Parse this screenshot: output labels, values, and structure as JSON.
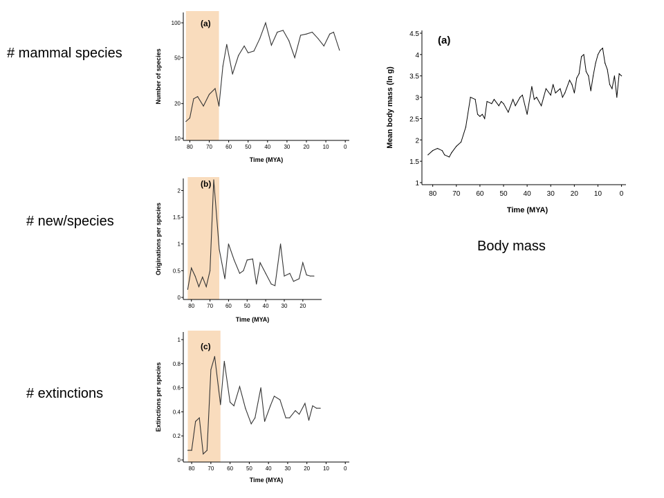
{
  "labels": {
    "species": "# mammal species",
    "originations": "# new/species",
    "extinctions": "# extinctions",
    "body_mass": "Body mass"
  },
  "colors": {
    "highlight": "#f9dcbd",
    "line": "#333333",
    "axis": "#000000"
  },
  "chart_data": [
    {
      "id": "species",
      "type": "line",
      "panel_label": "(a)",
      "xlabel": "Time (MYA)",
      "ylabel": "Number of species",
      "y_scale": "log",
      "ylim": [
        10,
        100
      ],
      "yticks": [
        "100",
        "50",
        "20",
        "10"
      ],
      "ytick_values": [
        100,
        50,
        20,
        10
      ],
      "xlim": [
        83,
        -1
      ],
      "xticks": [
        "80",
        "70",
        "60",
        "50",
        "40",
        "30",
        "20",
        "10",
        "0"
      ],
      "xtick_values": [
        80,
        70,
        60,
        50,
        40,
        30,
        20,
        10,
        0
      ],
      "highlight_range": [
        82,
        65
      ],
      "x": [
        82,
        80,
        78,
        76,
        73,
        70,
        67,
        65,
        63,
        61,
        58,
        55,
        52,
        50,
        47,
        44,
        41,
        38,
        35,
        32,
        29,
        26,
        23,
        20,
        17,
        14,
        11,
        8,
        6,
        3
      ],
      "values": [
        14,
        15,
        22,
        23,
        19,
        24,
        27,
        19,
        42,
        65,
        36,
        52,
        63,
        55,
        57,
        73,
        100,
        64,
        83,
        86,
        70,
        50,
        78,
        80,
        83,
        73,
        63,
        80,
        83,
        58
      ]
    },
    {
      "id": "originations",
      "type": "line",
      "panel_label": "(b)",
      "xlabel": "Time (MYA)",
      "ylabel": "Originations per species",
      "ylim": [
        0,
        2.2
      ],
      "yticks": [
        "2",
        "1.5",
        "1",
        "0.5",
        "0"
      ],
      "ytick_values": [
        2,
        1.5,
        1,
        0.5,
        0
      ],
      "xlim": [
        84,
        11
      ],
      "xticks": [
        "80",
        "70",
        "60",
        "50",
        "40",
        "30",
        "20"
      ],
      "xtick_values": [
        80,
        70,
        60,
        50,
        40,
        30,
        20
      ],
      "highlight_range": [
        82,
        65
      ],
      "x": [
        82,
        80,
        78,
        76,
        74,
        72,
        70,
        68,
        65,
        62,
        60,
        57,
        54,
        52,
        50,
        47,
        45,
        43,
        40,
        37,
        35,
        32,
        30,
        27,
        25,
        22,
        20,
        18,
        16,
        14
      ],
      "values": [
        0.15,
        0.55,
        0.4,
        0.2,
        0.38,
        0.2,
        0.5,
        2.2,
        0.9,
        0.35,
        1.0,
        0.7,
        0.45,
        0.5,
        0.7,
        0.72,
        0.25,
        0.65,
        0.45,
        0.25,
        0.22,
        1.0,
        0.4,
        0.45,
        0.3,
        0.35,
        0.65,
        0.42,
        0.4,
        0.4
      ]
    },
    {
      "id": "extinctions",
      "type": "line",
      "panel_label": "(c)",
      "xlabel": "Time (MYA)",
      "ylabel": "Extinctions per species",
      "ylim": [
        0,
        1
      ],
      "yticks": [
        "1",
        "0.8",
        "0.6",
        "0.4",
        "0.2",
        "0"
      ],
      "ytick_values": [
        1,
        0.8,
        0.6,
        0.4,
        0.2,
        0
      ],
      "xlim": [
        84,
        -1
      ],
      "xticks": [
        "80",
        "70",
        "60",
        "50",
        "40",
        "30",
        "20",
        "10",
        "0"
      ],
      "xtick_values": [
        80,
        70,
        60,
        50,
        40,
        30,
        20,
        10,
        0
      ],
      "highlight_range": [
        82,
        65
      ],
      "x": [
        82,
        80,
        78,
        76,
        74,
        72,
        70,
        68,
        65,
        63,
        60,
        58,
        55,
        52,
        49,
        47,
        44,
        42,
        39,
        37,
        34,
        31,
        29,
        26,
        24,
        21,
        19,
        17,
        15,
        13
      ],
      "values": [
        0.08,
        0.08,
        0.32,
        0.35,
        0.05,
        0.08,
        0.75,
        0.86,
        0.46,
        0.82,
        0.48,
        0.45,
        0.61,
        0.43,
        0.3,
        0.35,
        0.6,
        0.32,
        0.45,
        0.53,
        0.5,
        0.35,
        0.35,
        0.41,
        0.38,
        0.47,
        0.33,
        0.45,
        0.43,
        0.43
      ]
    },
    {
      "id": "body_mass",
      "type": "line",
      "panel_label": "(a)",
      "xlabel": "Time (MYA)",
      "ylabel": "Mean body mass (ln g)",
      "ylim": [
        1,
        4.5
      ],
      "yticks": [
        "4.5",
        "4",
        "3.5",
        "3",
        "2.5",
        "2",
        "1.5",
        "1"
      ],
      "ytick_values": [
        4.5,
        4,
        3.5,
        3,
        2.5,
        2,
        1.5,
        1
      ],
      "xlim": [
        84,
        -1
      ],
      "xticks": [
        "80",
        "70",
        "60",
        "50",
        "40",
        "30",
        "20",
        "10",
        "0"
      ],
      "xtick_values": [
        80,
        70,
        60,
        50,
        40,
        30,
        20,
        10,
        0
      ],
      "x": [
        82,
        80,
        78,
        76,
        75,
        73,
        72,
        70,
        68,
        66,
        64,
        62,
        61,
        60,
        59,
        58,
        57,
        55,
        54,
        52,
        51,
        50,
        48,
        46,
        45,
        43,
        42,
        40,
        38,
        37,
        36,
        34,
        33,
        32,
        30,
        29,
        28,
        26,
        25,
        24,
        22,
        21,
        20,
        19,
        18,
        17,
        16,
        15,
        14,
        13,
        12,
        11,
        10,
        9,
        8,
        7,
        6,
        5,
        4,
        3,
        2,
        1,
        0
      ],
      "values": [
        1.65,
        1.75,
        1.8,
        1.75,
        1.65,
        1.6,
        1.7,
        1.85,
        1.95,
        2.3,
        3.0,
        2.95,
        2.6,
        2.55,
        2.6,
        2.5,
        2.9,
        2.85,
        2.95,
        2.8,
        2.9,
        2.85,
        2.65,
        2.95,
        2.8,
        3.0,
        3.05,
        2.6,
        3.25,
        2.95,
        3.0,
        2.8,
        3.0,
        3.2,
        3.05,
        3.3,
        3.1,
        3.2,
        3.0,
        3.1,
        3.4,
        3.3,
        3.1,
        3.45,
        3.55,
        3.95,
        4.0,
        3.6,
        3.5,
        3.15,
        3.5,
        3.8,
        4.0,
        4.1,
        4.15,
        3.8,
        3.65,
        3.3,
        3.2,
        3.5,
        3.0,
        3.55,
        3.5
      ]
    }
  ]
}
